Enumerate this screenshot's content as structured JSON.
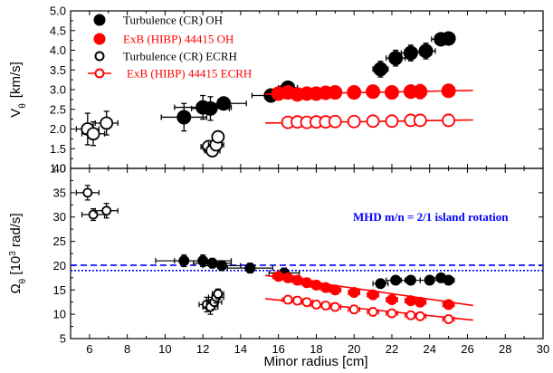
{
  "chart_data": [
    {
      "type": "scatter",
      "panel": "top",
      "ylabel": "V_θ [km/s]",
      "ylabel_main": "V",
      "ylabel_sub": "θ",
      "ylabel_unit": "[km/s]",
      "xlim": [
        5,
        30
      ],
      "ylim": [
        1.0,
        5.0
      ],
      "yticks": [
        1.0,
        1.5,
        2.0,
        2.5,
        3.0,
        3.5,
        4.0,
        4.5,
        5.0
      ],
      "ytick_labels": [
        "1.0",
        "1.5",
        "2.0",
        "2.5",
        "3.0",
        "3.5",
        "4.0",
        "4.5",
        "5.0"
      ],
      "legend": [
        {
          "label": "Turbulence (CR) OH",
          "color": "#000000",
          "filled": true
        },
        {
          "label": "ExB (HIBP) 44415 OH",
          "color": "#ff0000",
          "filled": true
        },
        {
          "label": "Turbulence (CR) ECRH",
          "color": "#000000",
          "filled": false
        },
        {
          "label": "ExB (HIBP) 44415 ECRH",
          "color": "#ff0000",
          "filled": false
        }
      ],
      "series": [
        {
          "name": "Turbulence (CR) OH",
          "color": "#000000",
          "filled": true,
          "x": [
            11.0,
            12.0,
            12.4,
            13.1,
            15.6,
            16.3,
            16.5,
            21.4,
            22.2,
            23.0,
            23.8,
            24.6,
            25.0
          ],
          "y": [
            2.3,
            2.55,
            2.52,
            2.65,
            2.85,
            2.95,
            3.05,
            3.52,
            3.8,
            3.93,
            3.98,
            4.28,
            4.3
          ],
          "xe": [
            1.2,
            1.5,
            1.0,
            1.2,
            1.0,
            0.8,
            0.5,
            0.4,
            0.5,
            0.5,
            0.5,
            0.5,
            0.3
          ],
          "ye": [
            0.35,
            0.3,
            0.3,
            0.15,
            0.15,
            0.15,
            0.15,
            0.2,
            0.2,
            0.2,
            0.2,
            0.1,
            0.1
          ]
        },
        {
          "name": "ExB (HIBP) 44415 OH",
          "color": "#ff0000",
          "filled": true,
          "x": [
            16.0,
            16.5,
            17.0,
            17.5,
            18.0,
            18.5,
            19.0,
            20.0,
            21.0,
            22.0,
            23.0,
            23.5,
            25.0
          ],
          "y": [
            2.9,
            2.93,
            2.88,
            2.9,
            2.9,
            2.92,
            2.93,
            2.93,
            2.95,
            2.93,
            2.95,
            2.95,
            2.97
          ],
          "xe": [
            0.3,
            0.3,
            0.3,
            0.3,
            0.3,
            0.3,
            0.3,
            0.3,
            0.3,
            0.3,
            0.3,
            0.3,
            0.3
          ],
          "ye": [
            0.12,
            0.12,
            0.12,
            0.12,
            0.12,
            0.12,
            0.12,
            0.12,
            0.12,
            0.15,
            0.15,
            0.18,
            0.15
          ],
          "line": [
            15.3,
            2.88,
            26.3,
            2.98
          ]
        },
        {
          "name": "Turbulence (CR) ECRH",
          "color": "#000000",
          "filled": false,
          "x": [
            5.9,
            6.2,
            6.9,
            12.3,
            12.5,
            12.7,
            12.8
          ],
          "y": [
            2.0,
            1.88,
            2.15,
            1.55,
            1.45,
            1.6,
            1.8
          ],
          "xe": [
            0.6,
            0.6,
            0.6,
            0.4,
            0.4,
            0.4,
            0.3
          ],
          "ye": [
            0.4,
            0.3,
            0.3,
            0.15,
            0.15,
            0.15,
            0.1
          ]
        },
        {
          "name": "ExB (HIBP) 44415 ECRH",
          "color": "#ff0000",
          "filled": false,
          "x": [
            16.5,
            17.0,
            17.5,
            18.0,
            18.5,
            19.0,
            20.0,
            21.0,
            22.0,
            23.0,
            23.5,
            25.0
          ],
          "y": [
            2.17,
            2.18,
            2.17,
            2.18,
            2.18,
            2.19,
            2.19,
            2.2,
            2.2,
            2.22,
            2.22,
            2.22
          ],
          "xe": [
            0.3,
            0.3,
            0.3,
            0.3,
            0.3,
            0.3,
            0.3,
            0.3,
            0.3,
            0.3,
            0.3,
            0.3
          ],
          "ye": [
            0.1,
            0.1,
            0.1,
            0.1,
            0.1,
            0.1,
            0.1,
            0.1,
            0.1,
            0.12,
            0.12,
            0.15
          ],
          "line": [
            15.3,
            2.15,
            26.3,
            2.23
          ]
        }
      ]
    },
    {
      "type": "scatter",
      "panel": "bottom",
      "ylabel": "Ω_θ [10^3 rad/s]",
      "ylabel_main": "Ω",
      "ylabel_sub": "θ",
      "ylabel_unit_pre": " [10",
      "ylabel_unit_sup": "3",
      "ylabel_unit_post": " rad/s]",
      "xlabel": "Minor radius [cm]",
      "xlim": [
        5,
        30
      ],
      "xticks": [
        6,
        8,
        10,
        12,
        14,
        16,
        18,
        20,
        22,
        24,
        26,
        28,
        30
      ],
      "xtick_labels": [
        "6",
        "8",
        "10",
        "12",
        "14",
        "16",
        "18",
        "20",
        "22",
        "24",
        "26",
        "28",
        "30"
      ],
      "ylim": [
        5,
        40
      ],
      "yticks": [
        5,
        10,
        15,
        20,
        25,
        30,
        35,
        40
      ],
      "ytick_labels": [
        "5",
        "10",
        "15",
        "20",
        "25",
        "30",
        "35",
        "40"
      ],
      "annotation": "MHD m/n = 2/1 island rotation",
      "annotation_color": "#0000ff",
      "reference_lines": [
        {
          "y": 20.1,
          "style": "dash",
          "color": "#0000ff"
        },
        {
          "y": 19.0,
          "style": "dot",
          "color": "#0000ff"
        }
      ],
      "series": [
        {
          "name": "Turbulence (CR) OH",
          "color": "#000000",
          "filled": true,
          "x": [
            11.0,
            12.0,
            12.5,
            13.0,
            14.5,
            16.3,
            21.4,
            22.2,
            23.0,
            24.0,
            24.6,
            25.0
          ],
          "y": [
            21.0,
            21.0,
            20.5,
            20.0,
            19.5,
            18.5,
            16.3,
            17.0,
            17.0,
            17.0,
            17.5,
            17.0
          ],
          "xe": [
            1.5,
            1.5,
            1.0,
            1.0,
            1.2,
            0.8,
            0.4,
            0.5,
            0.5,
            0.5,
            0.5,
            0.3
          ],
          "ye": [
            1.2,
            1.2,
            1.0,
            1.0,
            1.0,
            1.0,
            0.8,
            0.8,
            0.8,
            0.8,
            0.8,
            0.8
          ]
        },
        {
          "name": "ExB (HIBP) 44415 OH",
          "color": "#ff0000",
          "filled": true,
          "x": [
            16.0,
            16.5,
            17.0,
            17.5,
            18.0,
            18.5,
            19.0,
            20.0,
            21.0,
            22.0,
            23.0,
            23.5,
            25.0
          ],
          "y": [
            17.8,
            17.5,
            17.0,
            16.5,
            16.0,
            15.5,
            15.0,
            14.5,
            14.0,
            13.0,
            12.8,
            12.5,
            12.0
          ],
          "xe": [
            0.3,
            0.3,
            0.3,
            0.3,
            0.3,
            0.3,
            0.3,
            0.3,
            0.3,
            0.3,
            0.3,
            0.3,
            0.3
          ],
          "ye": [
            0.8,
            0.8,
            0.8,
            0.8,
            0.8,
            0.8,
            0.8,
            0.8,
            0.8,
            0.8,
            0.8,
            0.8,
            0.8
          ],
          "line": [
            15.3,
            18.0,
            26.3,
            11.8
          ]
        },
        {
          "name": "Turbulence (CR) ECRH",
          "color": "#000000",
          "filled": false,
          "x": [
            5.9,
            6.2,
            6.9,
            12.2,
            12.4,
            12.6,
            12.7,
            12.8
          ],
          "y": [
            35.0,
            30.5,
            31.3,
            12.0,
            11.5,
            12.5,
            13.5,
            14.2
          ],
          "xe": [
            0.6,
            0.6,
            0.6,
            0.4,
            0.4,
            0.4,
            0.4,
            0.3
          ],
          "ye": [
            1.5,
            1.2,
            1.5,
            1.5,
            1.5,
            1.5,
            1.2,
            1.0
          ]
        },
        {
          "name": "ExB (HIBP) 44415 ECRH",
          "color": "#ff0000",
          "filled": false,
          "x": [
            16.5,
            17.0,
            17.5,
            18.0,
            18.5,
            19.0,
            20.0,
            21.0,
            22.0,
            23.0,
            23.5,
            25.0
          ],
          "y": [
            13.0,
            12.8,
            12.5,
            12.0,
            11.8,
            11.5,
            11.0,
            10.5,
            10.2,
            9.8,
            9.6,
            9.0
          ],
          "xe": [
            0.3,
            0.3,
            0.3,
            0.3,
            0.3,
            0.3,
            0.3,
            0.3,
            0.3,
            0.3,
            0.3,
            0.3
          ],
          "ye": [
            0.8,
            0.8,
            0.8,
            0.8,
            0.8,
            0.8,
            0.8,
            0.8,
            0.8,
            0.8,
            0.8,
            0.8
          ],
          "line": [
            15.3,
            13.2,
            26.3,
            8.8
          ]
        }
      ]
    }
  ]
}
